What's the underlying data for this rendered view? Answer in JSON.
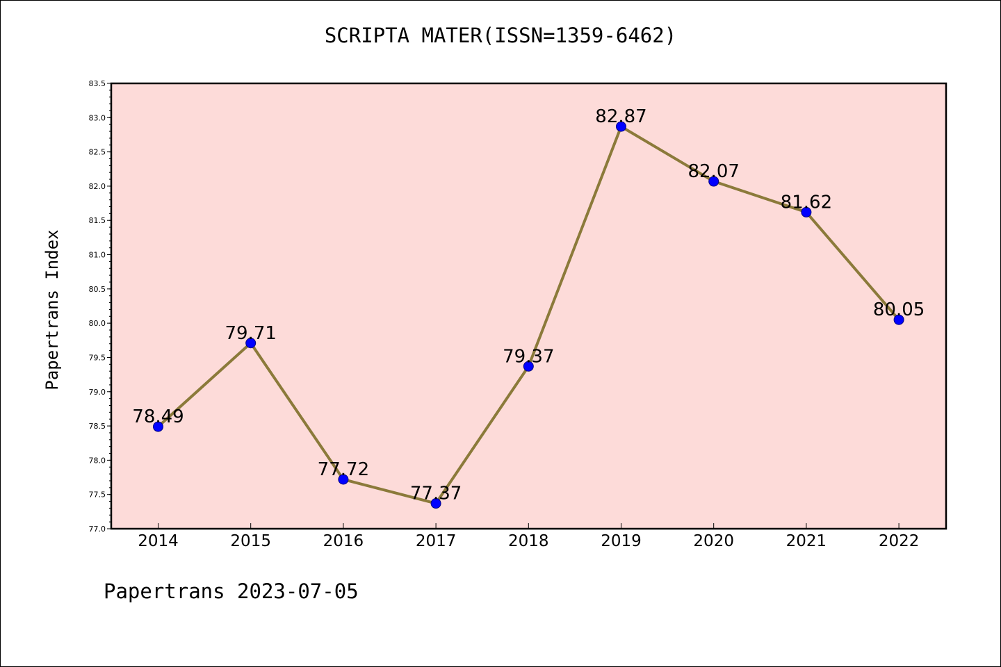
{
  "colors": {
    "plot_background": "#fddbd9",
    "line": "#8b7a3a",
    "marker": "#0000ff",
    "marker_edge": "#000080",
    "axis": "#000000"
  },
  "chart_data": {
    "type": "line",
    "title": "SCRIPTA MATER(ISSN=1359-6462)",
    "xlabel": "",
    "ylabel": "Papertrans Index",
    "categories": [
      "2014",
      "2015",
      "2016",
      "2017",
      "2018",
      "2019",
      "2020",
      "2021",
      "2022"
    ],
    "series": [
      {
        "values": [
          78.49,
          79.71,
          77.72,
          77.37,
          79.37,
          82.87,
          82.07,
          81.62,
          80.05
        ],
        "labels": [
          "78.49",
          "79.71",
          "77.72",
          "77.37",
          "79.37",
          "82.87",
          "82.07",
          "81.62",
          "80.05"
        ]
      }
    ],
    "ylim": [
      77.0,
      83.5
    ],
    "yticks": [
      "77.0",
      "77.5",
      "78.0",
      "78.5",
      "79.0",
      "79.5",
      "80.0",
      "80.5",
      "81.0",
      "81.5",
      "82.0",
      "82.5",
      "83.0",
      "83.5"
    ],
    "grid": false,
    "legend": "none"
  },
  "footer": "Papertrans 2023-07-05"
}
